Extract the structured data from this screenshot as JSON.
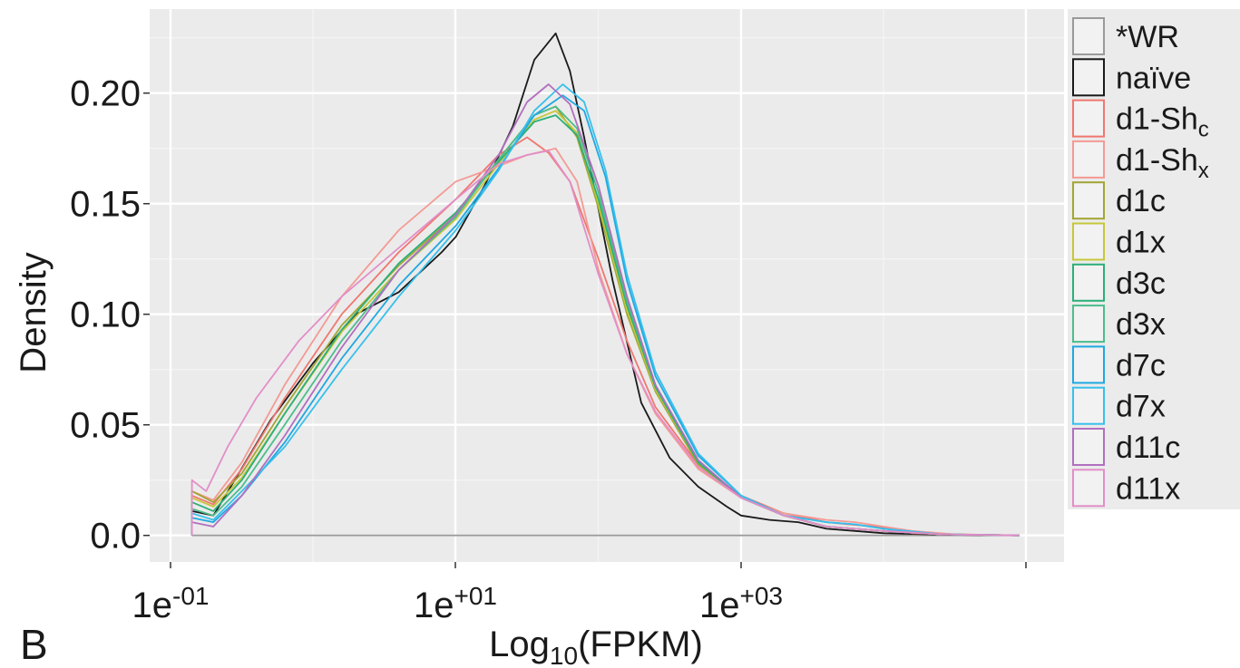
{
  "panel_label": "B",
  "chart_data": {
    "type": "line",
    "title": "",
    "xlabel": {
      "base": "Log",
      "sub": "10",
      "tail": "(FPKM)"
    },
    "ylabel": "Density",
    "x_scale": "log10",
    "xlim_log10": [
      -1.15,
      2.55
    ],
    "ylim": [
      -0.012,
      0.238
    ],
    "x_ticks": [
      {
        "log10": -1,
        "base": "1e",
        "exp": "-01"
      },
      {
        "log10": 1,
        "base": "1e",
        "exp": "+01"
      },
      {
        "log10": 3,
        "base": "1e",
        "exp": "+03"
      },
      {
        "log10": 5,
        "base": "",
        "exp": ""
      }
    ],
    "y_ticks": [
      {
        "value": 0.0,
        "label": "0.0"
      },
      {
        "value": 0.05,
        "label": "0.05"
      },
      {
        "value": 0.1,
        "label": "0.10"
      },
      {
        "value": 0.15,
        "label": "0.15"
      },
      {
        "value": 0.2,
        "label": "0.20"
      }
    ],
    "grid": true,
    "background": "#ebebeb",
    "legend_position": "right",
    "legend": [
      {
        "label": "*WR",
        "sub": "",
        "color": "#9a9a9a"
      },
      {
        "label": "naïve",
        "sub": "",
        "color": "#1a1a1a"
      },
      {
        "label": "d1-Sh",
        "sub": "c",
        "color": "#f0776f"
      },
      {
        "label": "d1-Sh",
        "sub": "x",
        "color": "#f49a94"
      },
      {
        "label": "d1c",
        "sub": "",
        "color": "#a3a534"
      },
      {
        "label": "d1x",
        "sub": "",
        "color": "#c5c83a"
      },
      {
        "label": "d3c",
        "sub": "",
        "color": "#2bb079"
      },
      {
        "label": "d3x",
        "sub": "",
        "color": "#4cbd8c"
      },
      {
        "label": "d7c",
        "sub": "",
        "color": "#1fa8e2"
      },
      {
        "label": "d7x",
        "sub": "",
        "color": "#37c0ec"
      },
      {
        "label": "d11c",
        "sub": "",
        "color": "#b16fbf"
      },
      {
        "label": "d11x",
        "sub": "",
        "color": "#e28ec7"
      }
    ],
    "series": [
      {
        "key": "wr",
        "color": "#9a9a9a",
        "x": [
          -0.85,
          4.95
        ],
        "y": [
          0.0,
          0.0
        ]
      },
      {
        "key": "naive",
        "color": "#1a1a1a",
        "x": [
          -0.85,
          -0.85,
          -0.7,
          -0.55,
          -0.3,
          0.0,
          0.3,
          0.6,
          0.9,
          1.0,
          1.2,
          1.4,
          1.55,
          1.7,
          1.8,
          1.9,
          2.1,
          2.3,
          2.5,
          2.7,
          2.9,
          3.0,
          3.2,
          3.4,
          3.6,
          3.8,
          4.0,
          4.3,
          4.6,
          4.95
        ],
        "y": [
          0.0,
          0.011,
          0.009,
          0.025,
          0.052,
          0.078,
          0.1,
          0.11,
          0.128,
          0.135,
          0.158,
          0.185,
          0.215,
          0.227,
          0.21,
          0.18,
          0.115,
          0.06,
          0.035,
          0.022,
          0.013,
          0.009,
          0.007,
          0.006,
          0.003,
          0.002,
          0.001,
          0.0005,
          0.0002,
          0.0
        ]
      },
      {
        "key": "d1-shc",
        "color": "#f0776f",
        "x": [
          -0.85,
          -0.85,
          -0.7,
          -0.5,
          -0.2,
          0.2,
          0.6,
          1.0,
          1.3,
          1.5,
          1.65,
          1.8,
          2.0,
          2.2,
          2.4,
          2.7,
          3.0,
          3.3,
          3.6,
          3.75,
          3.95,
          4.2,
          4.5,
          4.95
        ],
        "y": [
          0.0,
          0.018,
          0.014,
          0.03,
          0.062,
          0.1,
          0.128,
          0.152,
          0.172,
          0.18,
          0.173,
          0.16,
          0.125,
          0.088,
          0.058,
          0.032,
          0.018,
          0.01,
          0.006,
          0.005,
          0.004,
          0.001,
          0.0005,
          0.0
        ]
      },
      {
        "key": "d1-shx",
        "color": "#f49a94",
        "x": [
          -0.85,
          -0.85,
          -0.7,
          -0.5,
          -0.2,
          0.2,
          0.6,
          1.0,
          1.3,
          1.5,
          1.7,
          1.85,
          2.0,
          2.2,
          2.4,
          2.7,
          3.0,
          3.3,
          3.6,
          3.8,
          4.0,
          4.2,
          4.5,
          4.95
        ],
        "y": [
          0.0,
          0.02,
          0.016,
          0.033,
          0.068,
          0.108,
          0.138,
          0.16,
          0.167,
          0.172,
          0.175,
          0.16,
          0.12,
          0.082,
          0.055,
          0.03,
          0.017,
          0.01,
          0.007,
          0.006,
          0.004,
          0.002,
          0.0005,
          0.0
        ]
      },
      {
        "key": "d1c",
        "color": "#a3a534",
        "x": [
          -0.85,
          -0.85,
          -0.7,
          -0.5,
          -0.2,
          0.2,
          0.6,
          1.0,
          1.3,
          1.55,
          1.7,
          1.85,
          2.0,
          2.2,
          2.4,
          2.7,
          3.0,
          3.3,
          3.6,
          4.0,
          4.4,
          4.95
        ],
        "y": [
          0.0,
          0.02,
          0.015,
          0.028,
          0.058,
          0.095,
          0.122,
          0.145,
          0.17,
          0.19,
          0.194,
          0.18,
          0.148,
          0.1,
          0.065,
          0.032,
          0.017,
          0.009,
          0.004,
          0.002,
          0.0005,
          0.0
        ]
      },
      {
        "key": "d1x",
        "color": "#c5c83a",
        "x": [
          -0.85,
          -0.85,
          -0.7,
          -0.5,
          -0.2,
          0.2,
          0.6,
          1.0,
          1.3,
          1.55,
          1.7,
          1.85,
          2.0,
          2.2,
          2.4,
          2.7,
          3.0,
          3.3,
          3.6,
          4.0,
          4.4,
          4.95
        ],
        "y": [
          0.0,
          0.017,
          0.013,
          0.026,
          0.055,
          0.092,
          0.12,
          0.143,
          0.168,
          0.188,
          0.192,
          0.182,
          0.15,
          0.102,
          0.066,
          0.033,
          0.017,
          0.009,
          0.004,
          0.002,
          0.0005,
          0.0
        ]
      },
      {
        "key": "d3c",
        "color": "#2bb079",
        "x": [
          -0.85,
          -0.85,
          -0.7,
          -0.5,
          -0.2,
          0.2,
          0.6,
          1.0,
          1.3,
          1.55,
          1.7,
          1.85,
          2.0,
          2.2,
          2.4,
          2.7,
          3.0,
          3.3,
          3.6,
          4.0,
          4.4,
          4.95
        ],
        "y": [
          0.0,
          0.015,
          0.011,
          0.025,
          0.055,
          0.093,
          0.123,
          0.146,
          0.169,
          0.187,
          0.19,
          0.181,
          0.152,
          0.104,
          0.067,
          0.033,
          0.017,
          0.009,
          0.004,
          0.002,
          0.0005,
          0.0
        ]
      },
      {
        "key": "d3x",
        "color": "#4cbd8c",
        "x": [
          -0.85,
          -0.85,
          -0.7,
          -0.5,
          -0.2,
          0.2,
          0.6,
          1.0,
          1.3,
          1.55,
          1.7,
          1.85,
          2.0,
          2.2,
          2.4,
          2.7,
          3.0,
          3.3,
          3.6,
          4.0,
          4.4,
          4.95
        ],
        "y": [
          0.0,
          0.012,
          0.009,
          0.022,
          0.05,
          0.088,
          0.12,
          0.144,
          0.17,
          0.19,
          0.194,
          0.184,
          0.155,
          0.106,
          0.068,
          0.034,
          0.017,
          0.009,
          0.004,
          0.002,
          0.0005,
          0.0
        ]
      },
      {
        "key": "d7c",
        "color": "#1fa8e2",
        "x": [
          -0.85,
          -0.85,
          -0.7,
          -0.5,
          -0.2,
          0.2,
          0.6,
          1.0,
          1.3,
          1.55,
          1.75,
          1.9,
          2.05,
          2.2,
          2.4,
          2.7,
          3.0,
          3.3,
          3.6,
          3.8,
          4.0,
          4.4,
          4.95
        ],
        "y": [
          0.0,
          0.008,
          0.006,
          0.018,
          0.042,
          0.08,
          0.113,
          0.14,
          0.166,
          0.19,
          0.199,
          0.192,
          0.162,
          0.115,
          0.072,
          0.036,
          0.018,
          0.009,
          0.006,
          0.005,
          0.003,
          0.0005,
          0.0
        ]
      },
      {
        "key": "d7x",
        "color": "#37c0ec",
        "x": [
          -0.85,
          -0.85,
          -0.7,
          -0.5,
          -0.2,
          0.2,
          0.6,
          1.0,
          1.3,
          1.55,
          1.75,
          1.9,
          2.05,
          2.2,
          2.4,
          2.7,
          3.0,
          3.3,
          3.6,
          3.8,
          4.0,
          4.4,
          4.95
        ],
        "y": [
          0.0,
          0.01,
          0.007,
          0.02,
          0.04,
          0.075,
          0.108,
          0.138,
          0.165,
          0.192,
          0.204,
          0.196,
          0.165,
          0.118,
          0.074,
          0.037,
          0.018,
          0.009,
          0.006,
          0.005,
          0.003,
          0.0005,
          0.0
        ]
      },
      {
        "key": "d11c",
        "color": "#b16fbf",
        "x": [
          -0.85,
          -0.85,
          -0.7,
          -0.5,
          -0.2,
          0.2,
          0.6,
          1.0,
          1.3,
          1.5,
          1.65,
          1.8,
          2.0,
          2.2,
          2.4,
          2.7,
          3.0,
          3.3,
          3.6,
          4.0,
          4.4,
          4.95
        ],
        "y": [
          0.0,
          0.006,
          0.004,
          0.018,
          0.045,
          0.085,
          0.12,
          0.145,
          0.172,
          0.196,
          0.204,
          0.195,
          0.158,
          0.108,
          0.068,
          0.034,
          0.017,
          0.009,
          0.004,
          0.002,
          0.0005,
          0.0
        ]
      },
      {
        "key": "d11x",
        "color": "#e28ec7",
        "x": [
          -0.85,
          -0.85,
          -0.75,
          -0.6,
          -0.4,
          -0.1,
          0.2,
          0.6,
          1.0,
          1.3,
          1.5,
          1.65,
          1.8,
          2.0,
          2.2,
          2.4,
          2.7,
          3.0,
          3.3,
          3.6,
          4.0,
          4.4,
          4.95
        ],
        "y": [
          0.0,
          0.025,
          0.02,
          0.04,
          0.062,
          0.088,
          0.108,
          0.13,
          0.152,
          0.168,
          0.172,
          0.174,
          0.16,
          0.118,
          0.082,
          0.056,
          0.031,
          0.017,
          0.009,
          0.004,
          0.002,
          0.0005,
          0.0
        ]
      }
    ]
  }
}
